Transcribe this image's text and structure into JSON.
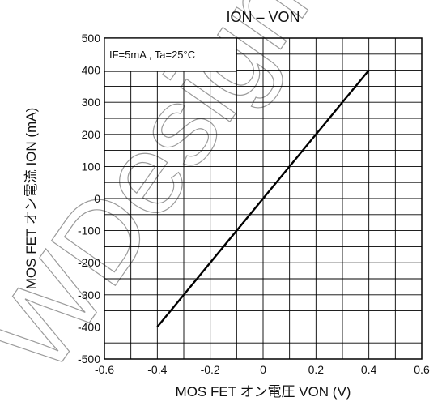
{
  "chart_data": {
    "type": "line",
    "title": "ION – VON",
    "xlabel": "MOS FET オン電圧  VON (V)",
    "ylabel": "MOS FET オン電流   ION (mA)",
    "annotation": "IF=5mA , Ta=25°C",
    "xlim": [
      -0.6,
      0.6
    ],
    "ylim": [
      -500,
      500
    ],
    "x_ticks": [
      "-0.6",
      "-0.4",
      "-0.2",
      "0",
      "0.2",
      "0.4",
      "0.6"
    ],
    "y_ticks": [
      "500",
      "400",
      "300",
      "200",
      "100",
      "0",
      "-100",
      "-200",
      "-300",
      "-400",
      "-500"
    ],
    "grid": true,
    "series": [
      {
        "x": [
          -0.4,
          0.4
        ],
        "y": [
          -400,
          400
        ]
      }
    ],
    "line_color": "#000000",
    "watermark": "WDesign"
  }
}
